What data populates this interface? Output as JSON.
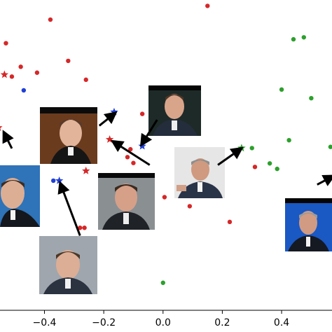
{
  "chart_data": {
    "type": "scatter",
    "title": "",
    "xlabel": "",
    "ylabel": "",
    "xlim": [
      -0.55,
      0.57
    ],
    "ylim": [
      -0.27,
      0.52
    ],
    "x_ticks": [
      -0.4,
      -0.2,
      0.0,
      0.2,
      0.4
    ],
    "x_tick_labels": [
      "−0.4",
      "−0.2",
      "0.0",
      "0.2",
      "0.4"
    ],
    "grid": false,
    "legend": "none",
    "colors": {
      "red": "#d62728",
      "green": "#2ca02c",
      "blue": "#1f3fd6",
      "arrow": "#000000",
      "axis": "#000000"
    },
    "series": [
      {
        "color": "#d62728",
        "marker": "dot",
        "points": [
          [
            0.15,
            0.505
          ],
          [
            -0.38,
            0.47
          ],
          [
            -0.53,
            0.41
          ],
          [
            -0.48,
            0.35
          ],
          [
            -0.51,
            0.325
          ],
          [
            -0.425,
            0.335
          ],
          [
            -0.32,
            0.365
          ],
          [
            -0.26,
            0.317
          ],
          [
            -0.23,
            0.21
          ],
          [
            -0.07,
            0.23
          ],
          [
            -0.11,
            0.14
          ],
          [
            -0.12,
            0.12
          ],
          [
            -0.1,
            0.105
          ],
          [
            0.005,
            0.018
          ],
          [
            0.09,
            -0.005
          ],
          [
            0.225,
            -0.045
          ],
          [
            0.31,
            0.095
          ],
          [
            -0.265,
            -0.06
          ],
          [
            -0.28,
            -0.06
          ]
        ]
      },
      {
        "color": "#2ca02c",
        "marker": "dot",
        "points": [
          [
            0.44,
            0.42
          ],
          [
            0.475,
            0.425
          ],
          [
            0.4,
            0.292
          ],
          [
            0.5,
            0.27
          ],
          [
            0.425,
            0.163
          ],
          [
            0.565,
            0.146
          ],
          [
            0.3,
            0.143
          ],
          [
            0.36,
            0.104
          ],
          [
            0.385,
            0.09
          ],
          [
            0.0,
            -0.2
          ]
        ]
      },
      {
        "color": "#1f3fd6",
        "marker": "dot",
        "points": [
          [
            -0.47,
            0.29
          ],
          [
            -0.335,
            0.13
          ],
          [
            -0.37,
            0.06
          ]
        ]
      },
      {
        "color": "#d62728",
        "marker": "star",
        "points": [
          [
            -0.535,
            0.33
          ],
          [
            -0.555,
            0.195
          ],
          [
            -0.18,
            0.165
          ],
          [
            -0.26,
            0.085
          ]
        ]
      },
      {
        "color": "#1f3fd6",
        "marker": "star",
        "points": [
          [
            -0.165,
            0.235
          ],
          [
            -0.07,
            0.148
          ],
          [
            -0.35,
            0.06
          ]
        ]
      },
      {
        "color": "#2ca02c",
        "marker": "star",
        "points": [
          [
            0.265,
            0.143
          ]
        ]
      }
    ],
    "annotations": [
      {
        "type": "arrow",
        "from": [
          -0.51,
          0.142
        ],
        "to": [
          -0.535,
          0.18
        ]
      },
      {
        "type": "arrow",
        "from": [
          -0.215,
          0.2
        ],
        "to": [
          -0.165,
          0.23
        ]
      },
      {
        "type": "arrow",
        "from": [
          -0.02,
          0.215
        ],
        "to": [
          -0.07,
          0.155
        ]
      },
      {
        "type": "arrow",
        "from": [
          -0.045,
          0.1
        ],
        "to": [
          -0.165,
          0.158
        ]
      },
      {
        "type": "arrow",
        "from": [
          0.185,
          0.1
        ],
        "to": [
          0.26,
          0.14
        ]
      },
      {
        "type": "arrow",
        "from": [
          -0.28,
          -0.08
        ],
        "to": [
          -0.345,
          0.05
        ]
      },
      {
        "type": "arrow",
        "from": [
          0.52,
          0.05
        ],
        "to": [
          0.57,
          0.07
        ]
      }
    ],
    "image_insets": [
      {
        "label": "portrait-blair-singing",
        "anchor": [
          -0.345,
          0.24
        ]
      },
      {
        "label": "portrait-blair-smiling",
        "anchor": [
          0.05,
          0.3
        ]
      },
      {
        "label": "portrait-chirac-seated",
        "anchor": [
          0.135,
          0.13
        ]
      },
      {
        "label": "portrait-schroeder-left",
        "anchor": [
          -0.53,
          0.05
        ]
      },
      {
        "label": "portrait-schroeder-center",
        "anchor": [
          -0.12,
          0.06
        ]
      },
      {
        "label": "portrait-blair-bottom",
        "anchor": [
          -0.36,
          -0.14
        ]
      },
      {
        "label": "portrait-chirac-right",
        "anchor": [
          0.54,
          0.02
        ]
      }
    ]
  }
}
